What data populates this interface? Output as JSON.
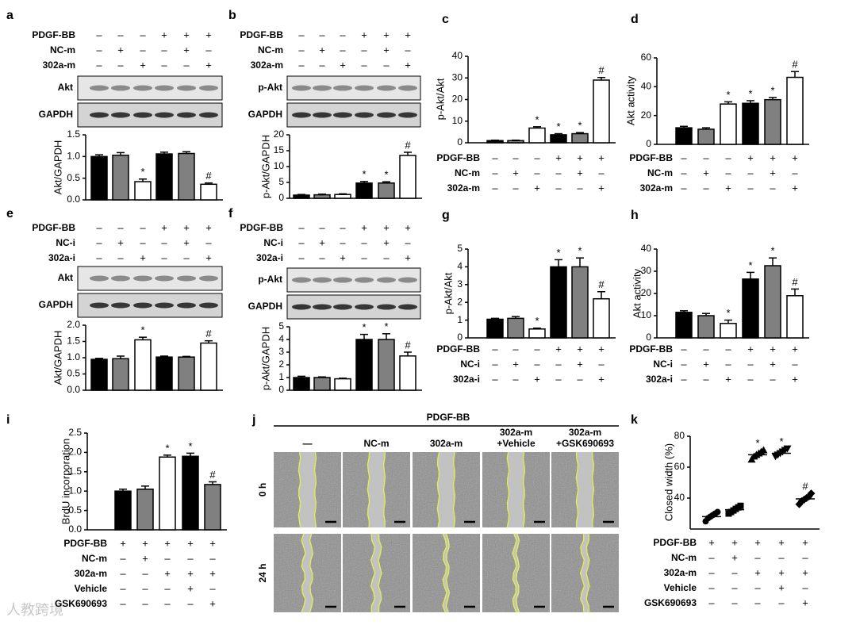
{
  "chart_data": [
    {
      "type": "bar",
      "panel": "a",
      "y_label": "Akt/GAPDH",
      "blots": [
        "Akt",
        "GAPDH"
      ],
      "treatments": [
        {
          "label": "PDGF-BB",
          "signs": [
            "–",
            "–",
            "–",
            "+",
            "+",
            "+"
          ]
        },
        {
          "label": "NC-m",
          "signs": [
            "–",
            "+",
            "–",
            "–",
            "+",
            "–"
          ]
        },
        {
          "label": "302a-m",
          "signs": [
            "–",
            "–",
            "+",
            "–",
            "–",
            "+"
          ]
        }
      ],
      "values": [
        1.0,
        1.03,
        0.42,
        1.06,
        1.07,
        0.36
      ],
      "errors": [
        0.04,
        0.06,
        0.06,
        0.04,
        0.04,
        0.03
      ],
      "colors": [
        "#000000",
        "#808080",
        "#ffffff",
        "#000000",
        "#808080",
        "#ffffff"
      ],
      "markers": [
        null,
        null,
        "*",
        null,
        null,
        "#"
      ],
      "ylim": [
        0,
        1.5
      ],
      "yticks": [
        {
          "value": 0,
          "label": "0.0"
        },
        {
          "value": 0.5,
          "label": "0.5"
        },
        {
          "value": 1,
          "label": "1.0"
        },
        {
          "value": 1.5,
          "label": "1.5"
        }
      ]
    },
    {
      "type": "bar",
      "panel": "b",
      "y_label": "p-Akt/GAPDH",
      "blots": [
        "p-Akt",
        "GAPDH"
      ],
      "treatments": [
        {
          "label": "PDGF-BB",
          "signs": [
            "–",
            "–",
            "–",
            "+",
            "+",
            "+"
          ]
        },
        {
          "label": "NC-m",
          "signs": [
            "–",
            "+",
            "–",
            "–",
            "+",
            "–"
          ]
        },
        {
          "label": "302a-m",
          "signs": [
            "–",
            "–",
            "+",
            "–",
            "–",
            "+"
          ]
        }
      ],
      "values": [
        1.0,
        1.1,
        1.2,
        4.8,
        4.8,
        13.5
      ],
      "errors": [
        0.2,
        0.2,
        0.2,
        0.5,
        0.4,
        1.0
      ],
      "colors": [
        "#000000",
        "#808080",
        "#ffffff",
        "#000000",
        "#808080",
        "#ffffff"
      ],
      "markers": [
        null,
        null,
        null,
        "*",
        "*",
        "#"
      ],
      "ylim": [
        0,
        20
      ],
      "yticks": [
        0,
        5,
        10,
        15,
        20
      ]
    },
    {
      "type": "bar",
      "panel": "c",
      "y_label": "p-Akt/Akt",
      "treatments": [
        {
          "label": "PDGF-BB",
          "signs": [
            "–",
            "–",
            "–",
            "+",
            "+",
            "+"
          ]
        },
        {
          "label": "NC-m",
          "signs": [
            "–",
            "+",
            "–",
            "–",
            "+",
            "–"
          ]
        },
        {
          "label": "302a-m",
          "signs": [
            "–",
            "–",
            "+",
            "–",
            "–",
            "+"
          ]
        }
      ],
      "values": [
        1.0,
        1.0,
        6.8,
        3.7,
        4.2,
        29
      ],
      "errors": [
        0.2,
        0.2,
        0.6,
        0.5,
        0.5,
        1.2
      ],
      "colors": [
        "#000000",
        "#808080",
        "#ffffff",
        "#000000",
        "#808080",
        "#ffffff"
      ],
      "markers": [
        null,
        null,
        "*",
        "*",
        "*",
        "#"
      ],
      "ylim": [
        0,
        40
      ],
      "yticks": [
        0,
        10,
        20,
        30,
        40
      ]
    },
    {
      "type": "bar",
      "panel": "d",
      "y_label": "Akt activity",
      "treatments": [
        {
          "label": "PDGF-BB",
          "signs": [
            "–",
            "–",
            "–",
            "+",
            "+",
            "+"
          ]
        },
        {
          "label": "NC-m",
          "signs": [
            "–",
            "+",
            "–",
            "–",
            "+",
            "–"
          ]
        },
        {
          "label": "302a-m",
          "signs": [
            "–",
            "–",
            "+",
            "–",
            "–",
            "+"
          ]
        }
      ],
      "values": [
        11.5,
        10.5,
        28,
        28.5,
        31,
        46.5
      ],
      "errors": [
        1,
        1,
        1.5,
        1.8,
        1.5,
        4
      ],
      "colors": [
        "#000000",
        "#808080",
        "#ffffff",
        "#000000",
        "#808080",
        "#ffffff"
      ],
      "markers": [
        null,
        null,
        "*",
        "*",
        "*",
        "#"
      ],
      "ylim": [
        0,
        60
      ],
      "yticks": [
        0,
        20,
        40,
        60
      ]
    },
    {
      "type": "bar",
      "panel": "e",
      "y_label": "Akt/GAPDH",
      "blots": [
        "Akt",
        "GAPDH"
      ],
      "treatments": [
        {
          "label": "PDGF-BB",
          "signs": [
            "–",
            "–",
            "–",
            "+",
            "+",
            "+"
          ]
        },
        {
          "label": "NC-i",
          "signs": [
            "–",
            "+",
            "–",
            "–",
            "+",
            "–"
          ]
        },
        {
          "label": "302a-i",
          "signs": [
            "–",
            "–",
            "+",
            "–",
            "–",
            "+"
          ]
        }
      ],
      "values": [
        0.95,
        0.97,
        1.55,
        1.02,
        1.02,
        1.45
      ],
      "errors": [
        0.03,
        0.08,
        0.08,
        0.03,
        0.02,
        0.07
      ],
      "colors": [
        "#000000",
        "#808080",
        "#ffffff",
        "#000000",
        "#808080",
        "#ffffff"
      ],
      "markers": [
        null,
        null,
        "*",
        null,
        null,
        "#"
      ],
      "ylim": [
        0,
        2
      ],
      "yticks": [
        {
          "value": 0,
          "label": "0.0"
        },
        {
          "value": 0.5,
          "label": "0.5"
        },
        {
          "value": 1,
          "label": "1.0"
        },
        {
          "value": 1.5,
          "label": "1.5"
        },
        {
          "value": 2,
          "label": "2.0"
        }
      ]
    },
    {
      "type": "bar",
      "panel": "f",
      "y_label": "p-Akt/GAPDH",
      "blots": [
        "p-Akt",
        "GAPDH"
      ],
      "treatments": [
        {
          "label": "PDGF-BB",
          "signs": [
            "–",
            "–",
            "–",
            "+",
            "+",
            "+"
          ]
        },
        {
          "label": "NC-i",
          "signs": [
            "–",
            "+",
            "–",
            "–",
            "+",
            "–"
          ]
        },
        {
          "label": "302a-i",
          "signs": [
            "–",
            "–",
            "+",
            "–",
            "–",
            "+"
          ]
        }
      ],
      "values": [
        1.0,
        1.0,
        0.9,
        4.0,
        4.0,
        2.7
      ],
      "errors": [
        0.1,
        0.05,
        0.05,
        0.4,
        0.45,
        0.3
      ],
      "colors": [
        "#000000",
        "#808080",
        "#ffffff",
        "#000000",
        "#808080",
        "#ffffff"
      ],
      "markers": [
        null,
        null,
        null,
        "*",
        "*",
        "#"
      ],
      "ylim": [
        0,
        5
      ],
      "yticks": [
        0,
        1,
        2,
        3,
        4,
        5
      ]
    },
    {
      "type": "bar",
      "panel": "g",
      "y_label": "p-Akt/Akt",
      "treatments": [
        {
          "label": "PDGF-BB",
          "signs": [
            "–",
            "–",
            "–",
            "+",
            "+",
            "+"
          ]
        },
        {
          "label": "NC-i",
          "signs": [
            "–",
            "+",
            "–",
            "–",
            "+",
            "–"
          ]
        },
        {
          "label": "302a-i",
          "signs": [
            "–",
            "–",
            "+",
            "–",
            "–",
            "+"
          ]
        }
      ],
      "values": [
        1.05,
        1.1,
        0.5,
        4.0,
        4.0,
        2.2
      ],
      "errors": [
        0.05,
        0.1,
        0.05,
        0.4,
        0.5,
        0.4
      ],
      "colors": [
        "#000000",
        "#808080",
        "#ffffff",
        "#000000",
        "#808080",
        "#ffffff"
      ],
      "markers": [
        null,
        null,
        "*",
        "*",
        "*",
        "#"
      ],
      "ylim": [
        0,
        5
      ],
      "yticks": [
        0,
        1,
        2,
        3,
        4,
        5
      ]
    },
    {
      "type": "bar",
      "panel": "h",
      "y_label": "Akt activity",
      "treatments": [
        {
          "label": "PDGF-BB",
          "signs": [
            "–",
            "–",
            "–",
            "+",
            "+",
            "+"
          ]
        },
        {
          "label": "NC-i",
          "signs": [
            "–",
            "+",
            "–",
            "–",
            "+",
            "–"
          ]
        },
        {
          "label": "302a-i",
          "signs": [
            "–",
            "–",
            "+",
            "–",
            "–",
            "+"
          ]
        }
      ],
      "values": [
        11.5,
        10,
        6.5,
        26.5,
        32.5,
        19
      ],
      "errors": [
        0.7,
        1,
        1.5,
        3,
        3.5,
        3
      ],
      "colors": [
        "#000000",
        "#808080",
        "#ffffff",
        "#000000",
        "#808080",
        "#ffffff"
      ],
      "markers": [
        null,
        null,
        "*",
        "*",
        "*",
        "#"
      ],
      "ylim": [
        0,
        40
      ],
      "yticks": [
        0,
        10,
        20,
        30,
        40
      ]
    },
    {
      "type": "bar",
      "panel": "i",
      "y_label": "BrdU incorporation",
      "treatments": [
        {
          "label": "PDGF-BB",
          "signs": [
            "+",
            "+",
            "+",
            "+",
            "+"
          ]
        },
        {
          "label": "NC-m",
          "signs": [
            "–",
            "+",
            "–",
            "–",
            "–"
          ]
        },
        {
          "label": "302a-m",
          "signs": [
            "–",
            "–",
            "+",
            "+",
            "+"
          ]
        },
        {
          "label": "Vehicle",
          "signs": [
            "–",
            "–",
            "–",
            "+",
            "–"
          ]
        },
        {
          "label": "GSK690693",
          "signs": [
            "–",
            "–",
            "–",
            "–",
            "+"
          ]
        }
      ],
      "values": [
        1.0,
        1.05,
        1.88,
        1.9,
        1.17
      ],
      "errors": [
        0.05,
        0.08,
        0.05,
        0.08,
        0.07
      ],
      "colors": [
        "#000000",
        "#808080",
        "#ffffff",
        "#000000",
        "#808080"
      ],
      "markers": [
        null,
        null,
        "*",
        "*",
        "#"
      ],
      "ylim": [
        0,
        2.5
      ],
      "yticks": [
        {
          "value": 0,
          "label": "0.0"
        },
        {
          "value": 0.5,
          "label": "0.5"
        },
        {
          "value": 1,
          "label": "1.0"
        },
        {
          "value": 1.5,
          "label": "1.5"
        },
        {
          "value": 2,
          "label": "2.0"
        },
        {
          "value": 2.5,
          "label": "2.5"
        }
      ]
    },
    {
      "type": "dot",
      "panel": "k",
      "y_label": "Closed width (%)",
      "treatments": [
        {
          "label": "PDGF-BB",
          "signs": [
            "+",
            "+",
            "+",
            "+",
            "+"
          ]
        },
        {
          "label": "NC-m",
          "signs": [
            "–",
            "+",
            "–",
            "–",
            "–"
          ]
        },
        {
          "label": "302a-m",
          "signs": [
            "–",
            "–",
            "+",
            "+",
            "+"
          ]
        },
        {
          "label": "Vehicle",
          "signs": [
            "–",
            "–",
            "–",
            "+",
            "–"
          ]
        },
        {
          "label": "GSK690693",
          "signs": [
            "–",
            "–",
            "–",
            "–",
            "+"
          ]
        }
      ],
      "values": [
        28,
        32.5,
        68,
        69,
        39.5
      ],
      "errors": [
        1.5,
        1.5,
        1.5,
        1,
        2
      ],
      "points": [
        [
          25,
          27,
          28,
          29,
          30,
          31
        ],
        [
          30,
          31,
          32,
          33,
          34,
          35
        ],
        [
          65,
          67,
          68,
          69,
          70,
          71
        ],
        [
          67,
          68,
          69,
          70,
          71,
          72
        ],
        [
          36,
          38,
          39,
          40,
          41,
          43
        ]
      ],
      "shapes": [
        "circle",
        "square",
        "triangle",
        "triangle-down",
        "diamond"
      ],
      "color": "#000000",
      "markers": [
        null,
        null,
        "*",
        "*",
        "#"
      ],
      "ylim": [
        20,
        80
      ],
      "yticks": [
        40,
        60,
        80
      ]
    }
  ],
  "wound_healing": {
    "panel": "j",
    "title": "PDGF-BB",
    "columns": [
      [
        "—"
      ],
      [
        "NC-m"
      ],
      [
        "302a-m"
      ],
      [
        "302a-m",
        "+Vehicle"
      ],
      [
        "302a-m",
        "+GSK690693"
      ]
    ],
    "rows": [
      "0 h",
      "24 h"
    ]
  },
  "watermark": "人教跨境"
}
